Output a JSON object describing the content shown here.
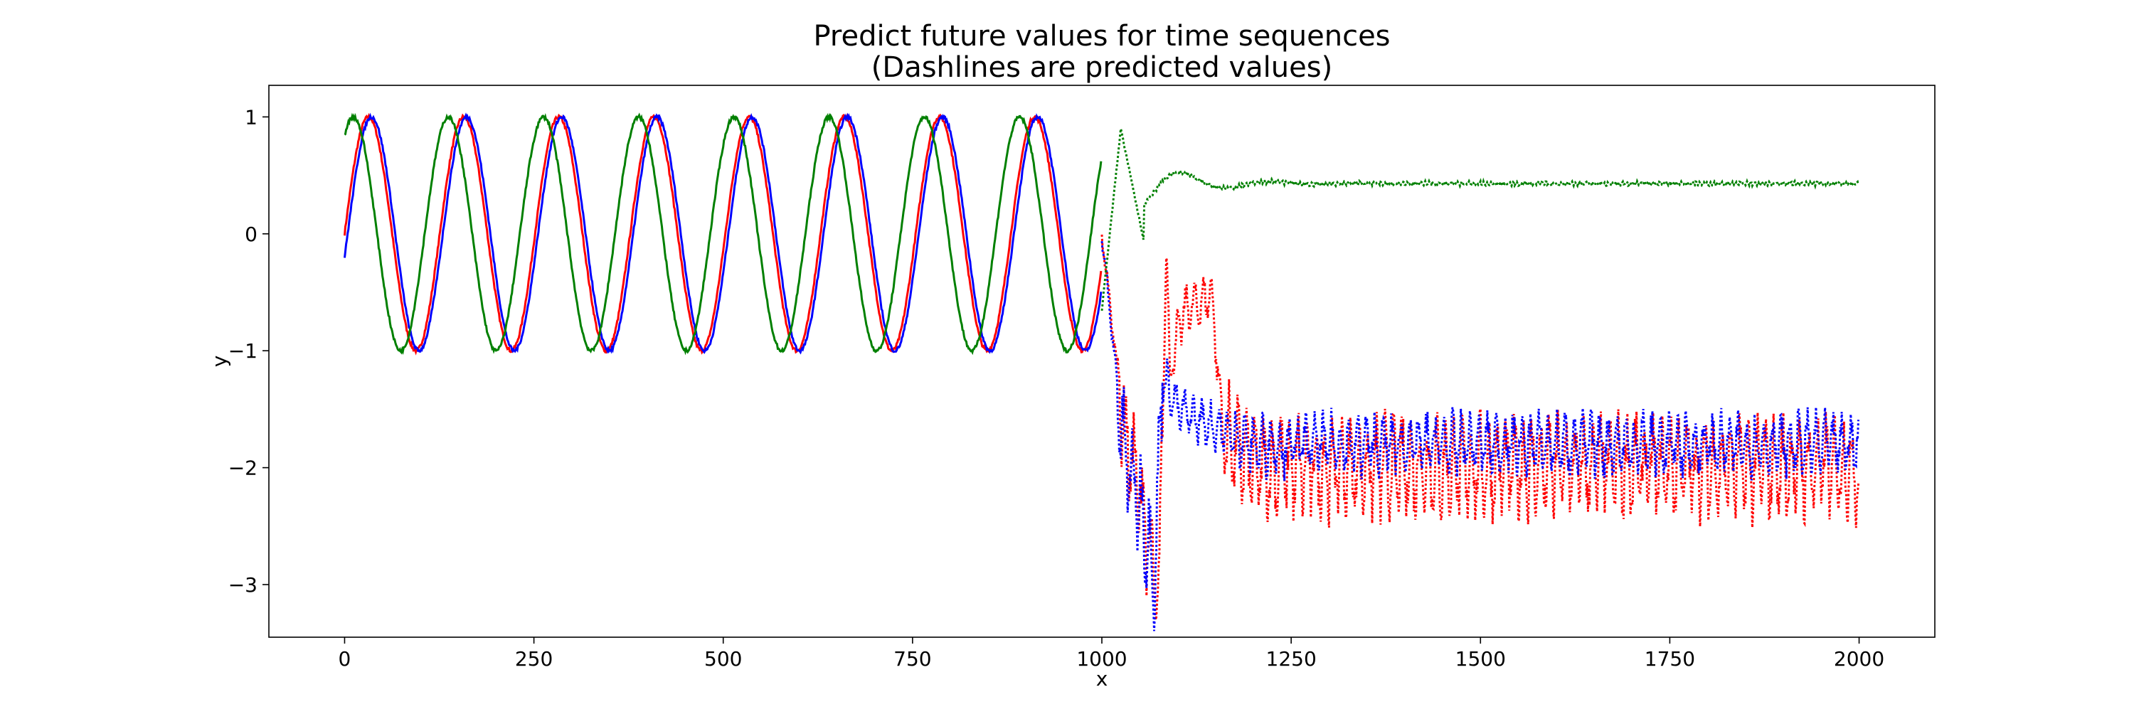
{
  "chart_data": {
    "type": "line",
    "title_line1": "Predict future values for time sequences",
    "title_line2": "(Dashlines are predicted values)",
    "xlabel": "x",
    "ylabel": "y",
    "xlim": [
      -100,
      2100
    ],
    "ylim": [
      -3.45,
      1.27
    ],
    "x_ticks": [
      0,
      250,
      500,
      750,
      1000,
      1250,
      1500,
      1750,
      2000
    ],
    "x_tick_labels": [
      "0",
      "250",
      "500",
      "750",
      "1000",
      "1250",
      "1500",
      "1750",
      "2000"
    ],
    "y_ticks": [
      1,
      0,
      -1,
      -2,
      -3
    ],
    "y_tick_labels": [
      "1",
      "0",
      "−1",
      "−2",
      "−3"
    ],
    "grid": false,
    "legend": "none",
    "input_length": 1000,
    "future_length": 1000,
    "period": 125.7,
    "series": [
      {
        "color": "#ff0000",
        "observed": {
          "x_range": [
            0,
            999
          ],
          "kind": "sine",
          "amplitude": 1.0,
          "phase_shift": 0.0
        },
        "predicted": {
          "x_range": [
            1000,
            1999
          ],
          "approx_points": [
            [
              1000,
              0.0
            ],
            [
              1030,
              -1.7
            ],
            [
              1050,
              -2.2
            ],
            [
              1075,
              -3.2
            ],
            [
              1085,
              -0.1
            ],
            [
              1090,
              -1.2
            ],
            [
              1100,
              -0.85
            ],
            [
              1110,
              -0.65
            ],
            [
              1130,
              -0.6
            ],
            [
              1145,
              -0.5
            ],
            [
              1160,
              -1.7
            ],
            [
              1200,
              -2.0
            ],
            [
              1500,
              -2.0
            ],
            [
              1999,
              -2.0
            ]
          ],
          "oscillation_range": [
            -2.55,
            -1.2
          ]
        }
      },
      {
        "color": "#0000ff",
        "observed": {
          "x_range": [
            0,
            999
          ],
          "kind": "sine",
          "amplitude": 1.0,
          "phase_shift": -0.2
        },
        "predicted": {
          "x_range": [
            1000,
            1999
          ],
          "approx_points": [
            [
              1000,
              0.0
            ],
            [
              1030,
              -1.9
            ],
            [
              1050,
              -2.3
            ],
            [
              1070,
              -2.9
            ],
            [
              1080,
              -1.2
            ],
            [
              1100,
              -1.5
            ],
            [
              1130,
              -1.6
            ],
            [
              1200,
              -1.8
            ],
            [
              1500,
              -1.8
            ],
            [
              1999,
              -1.8
            ]
          ],
          "oscillation_range": [
            -2.25,
            -1.4
          ]
        }
      },
      {
        "color": "#008000",
        "observed": {
          "x_range": [
            0,
            999
          ],
          "kind": "sine",
          "amplitude": 1.0,
          "phase_shift": 1.0
        },
        "predicted": {
          "x_range": [
            1000,
            1999
          ],
          "approx_points": [
            [
              1000,
              -0.65
            ],
            [
              1025,
              0.9
            ],
            [
              1055,
              -0.05
            ],
            [
              1070,
              0.1
            ],
            [
              1090,
              0.55
            ],
            [
              1150,
              0.45
            ],
            [
              1250,
              0.42
            ],
            [
              1999,
              0.43
            ]
          ],
          "settle_value": 0.43
        }
      }
    ]
  }
}
